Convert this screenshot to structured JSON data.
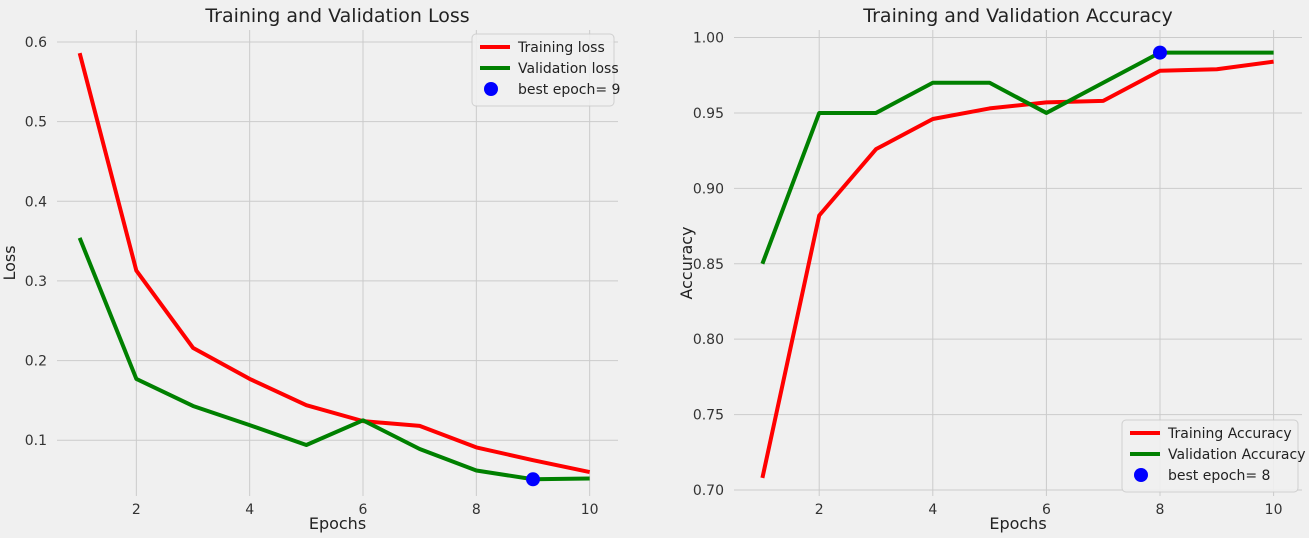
{
  "chart_data": [
    {
      "type": "line",
      "title": "Training and Validation Loss",
      "xlabel": "Epochs",
      "ylabel": "Loss",
      "xlim": [
        0.6,
        10.5
      ],
      "ylim": [
        0.03,
        0.615
      ],
      "xticks": [
        2,
        4,
        6,
        8,
        10
      ],
      "yticks": [
        0.1,
        0.2,
        0.3,
        0.4,
        0.5,
        0.6
      ],
      "ytick_labels": [
        "0.1",
        "0.2",
        "0.3",
        "0.4",
        "0.5",
        "0.6"
      ],
      "grid": true,
      "legend_position": "top-right",
      "x": [
        1,
        2,
        3,
        4,
        5,
        6,
        7,
        8,
        9,
        10
      ],
      "series": [
        {
          "name": "Training loss",
          "color": "#ff0000",
          "values": [
            0.586,
            0.313,
            0.216,
            0.177,
            0.144,
            0.124,
            0.118,
            0.091,
            0.075,
            0.06
          ]
        },
        {
          "name": "Validation loss",
          "color": "#008000",
          "values": [
            0.354,
            0.177,
            0.143,
            0.119,
            0.094,
            0.125,
            0.089,
            0.062,
            0.051,
            0.052
          ]
        }
      ],
      "best_point": {
        "name": "best epoch= 9",
        "x": 9,
        "y": 0.051,
        "color": "#0000ff"
      }
    },
    {
      "type": "line",
      "title": "Training and Validation Accuracy",
      "xlabel": "Epochs",
      "ylabel": "Accuracy",
      "xlim": [
        0.5,
        10.5
      ],
      "ylim": [
        0.696,
        1.005
      ],
      "xticks": [
        2,
        4,
        6,
        8,
        10
      ],
      "yticks": [
        0.7,
        0.75,
        0.8,
        0.85,
        0.9,
        0.95,
        1.0
      ],
      "ytick_labels": [
        "0.70",
        "0.75",
        "0.80",
        "0.85",
        "0.90",
        "0.95",
        "1.00"
      ],
      "grid": true,
      "legend_position": "bottom-right",
      "x": [
        1,
        2,
        3,
        4,
        5,
        6,
        7,
        8,
        9,
        10
      ],
      "series": [
        {
          "name": "Training Accuracy",
          "color": "#ff0000",
          "values": [
            0.708,
            0.882,
            0.926,
            0.946,
            0.953,
            0.957,
            0.958,
            0.978,
            0.979,
            0.984
          ]
        },
        {
          "name": "Validation Accuracy",
          "color": "#008000",
          "values": [
            0.85,
            0.95,
            0.95,
            0.97,
            0.97,
            0.95,
            0.97,
            0.99,
            0.99,
            0.99
          ]
        }
      ],
      "best_point": {
        "name": "best epoch= 8",
        "x": 8,
        "y": 0.99,
        "color": "#0000ff"
      }
    }
  ]
}
